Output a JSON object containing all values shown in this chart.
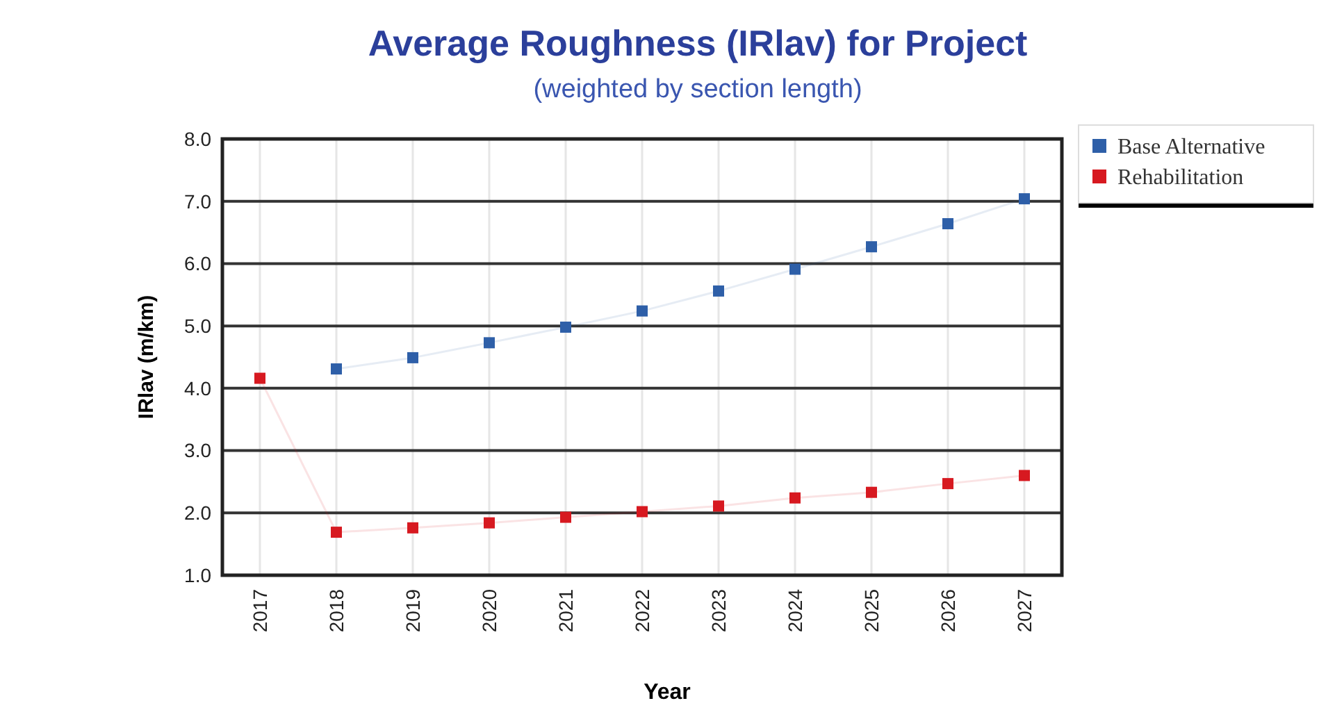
{
  "chart_data": {
    "type": "line",
    "title": "Average Roughness (IRlav) for Project",
    "subtitle": "(weighted by section length)",
    "xlabel": "Year",
    "ylabel": "IRlav (m/km)",
    "categories": [
      "2017",
      "2018",
      "2019",
      "2020",
      "2021",
      "2022",
      "2023",
      "2024",
      "2025",
      "2026",
      "2027"
    ],
    "series": [
      {
        "name": "Base Alternative",
        "color": "#2e5fa8",
        "values": [
          null,
          4.31,
          4.49,
          4.73,
          4.98,
          5.24,
          5.56,
          5.91,
          6.27,
          6.64,
          7.04
        ]
      },
      {
        "name": "Rehabilitation",
        "color": "#d71920",
        "values": [
          4.16,
          1.69,
          1.76,
          1.84,
          1.93,
          2.02,
          2.11,
          2.24,
          2.33,
          2.47,
          2.6
        ]
      }
    ],
    "ylim": [
      1,
      8
    ],
    "yticks": [
      {
        "value": 1,
        "label": "1.0"
      },
      {
        "value": 2,
        "label": "2.0"
      },
      {
        "value": 3,
        "label": "3.0"
      },
      {
        "value": 4,
        "label": "4.0"
      },
      {
        "value": 5,
        "label": "5.0"
      },
      {
        "value": 6,
        "label": "6.0"
      },
      {
        "value": 7,
        "label": "7.0"
      },
      {
        "value": 8,
        "label": "8.0"
      }
    ],
    "grid": true,
    "legend": "top right",
    "marker": "square",
    "line_style": "solid"
  }
}
